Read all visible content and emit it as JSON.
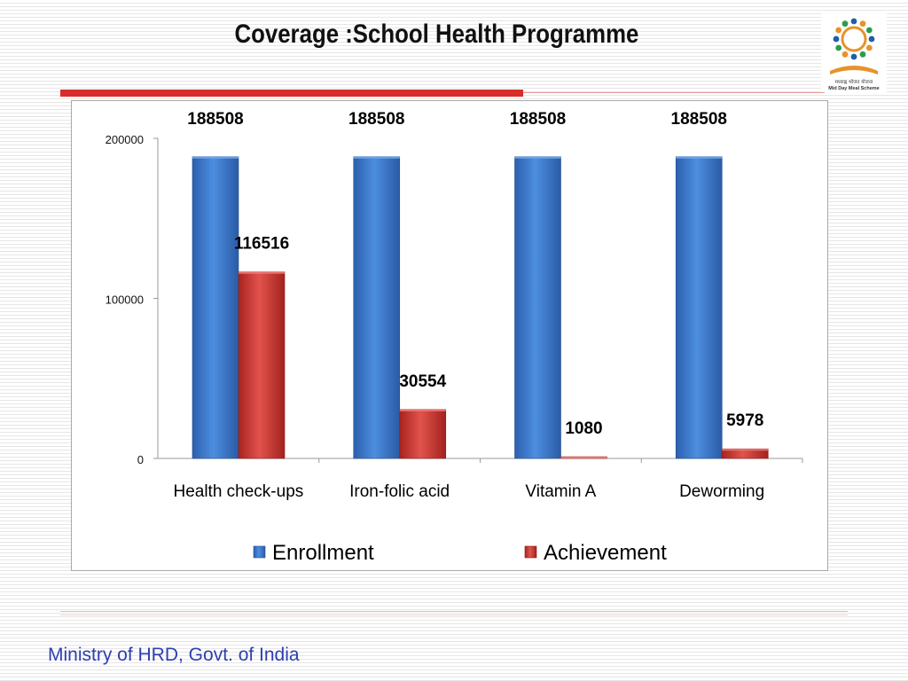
{
  "slide": {
    "title": "Coverage :School Health Programme",
    "footer": "Ministry of HRD, Govt. of India",
    "logo_caption_hindi": "मध्याह्न भोजन योजना",
    "logo_caption": "Mid Day Meal Scheme"
  },
  "colors": {
    "enrollment": "#3a73c8",
    "achievement": "#cf3a35",
    "accent_rule": "#d92c2c",
    "footer_text": "#2d3fb0"
  },
  "chart_data": {
    "type": "bar",
    "title": "",
    "xlabel": "",
    "ylabel": "",
    "categories": [
      "Health check-ups",
      "Iron-folic acid",
      "Vitamin A",
      "Deworming"
    ],
    "series": [
      {
        "name": "Enrollment",
        "values": [
          188508,
          188508,
          188508,
          188508
        ]
      },
      {
        "name": "Achievement",
        "values": [
          116516,
          30554,
          1080,
          5978
        ]
      }
    ],
    "ylim": [
      0,
      200000
    ],
    "yticks": [
      0,
      100000,
      200000
    ],
    "data_labels": true,
    "grid": false,
    "legend": "bottom"
  }
}
